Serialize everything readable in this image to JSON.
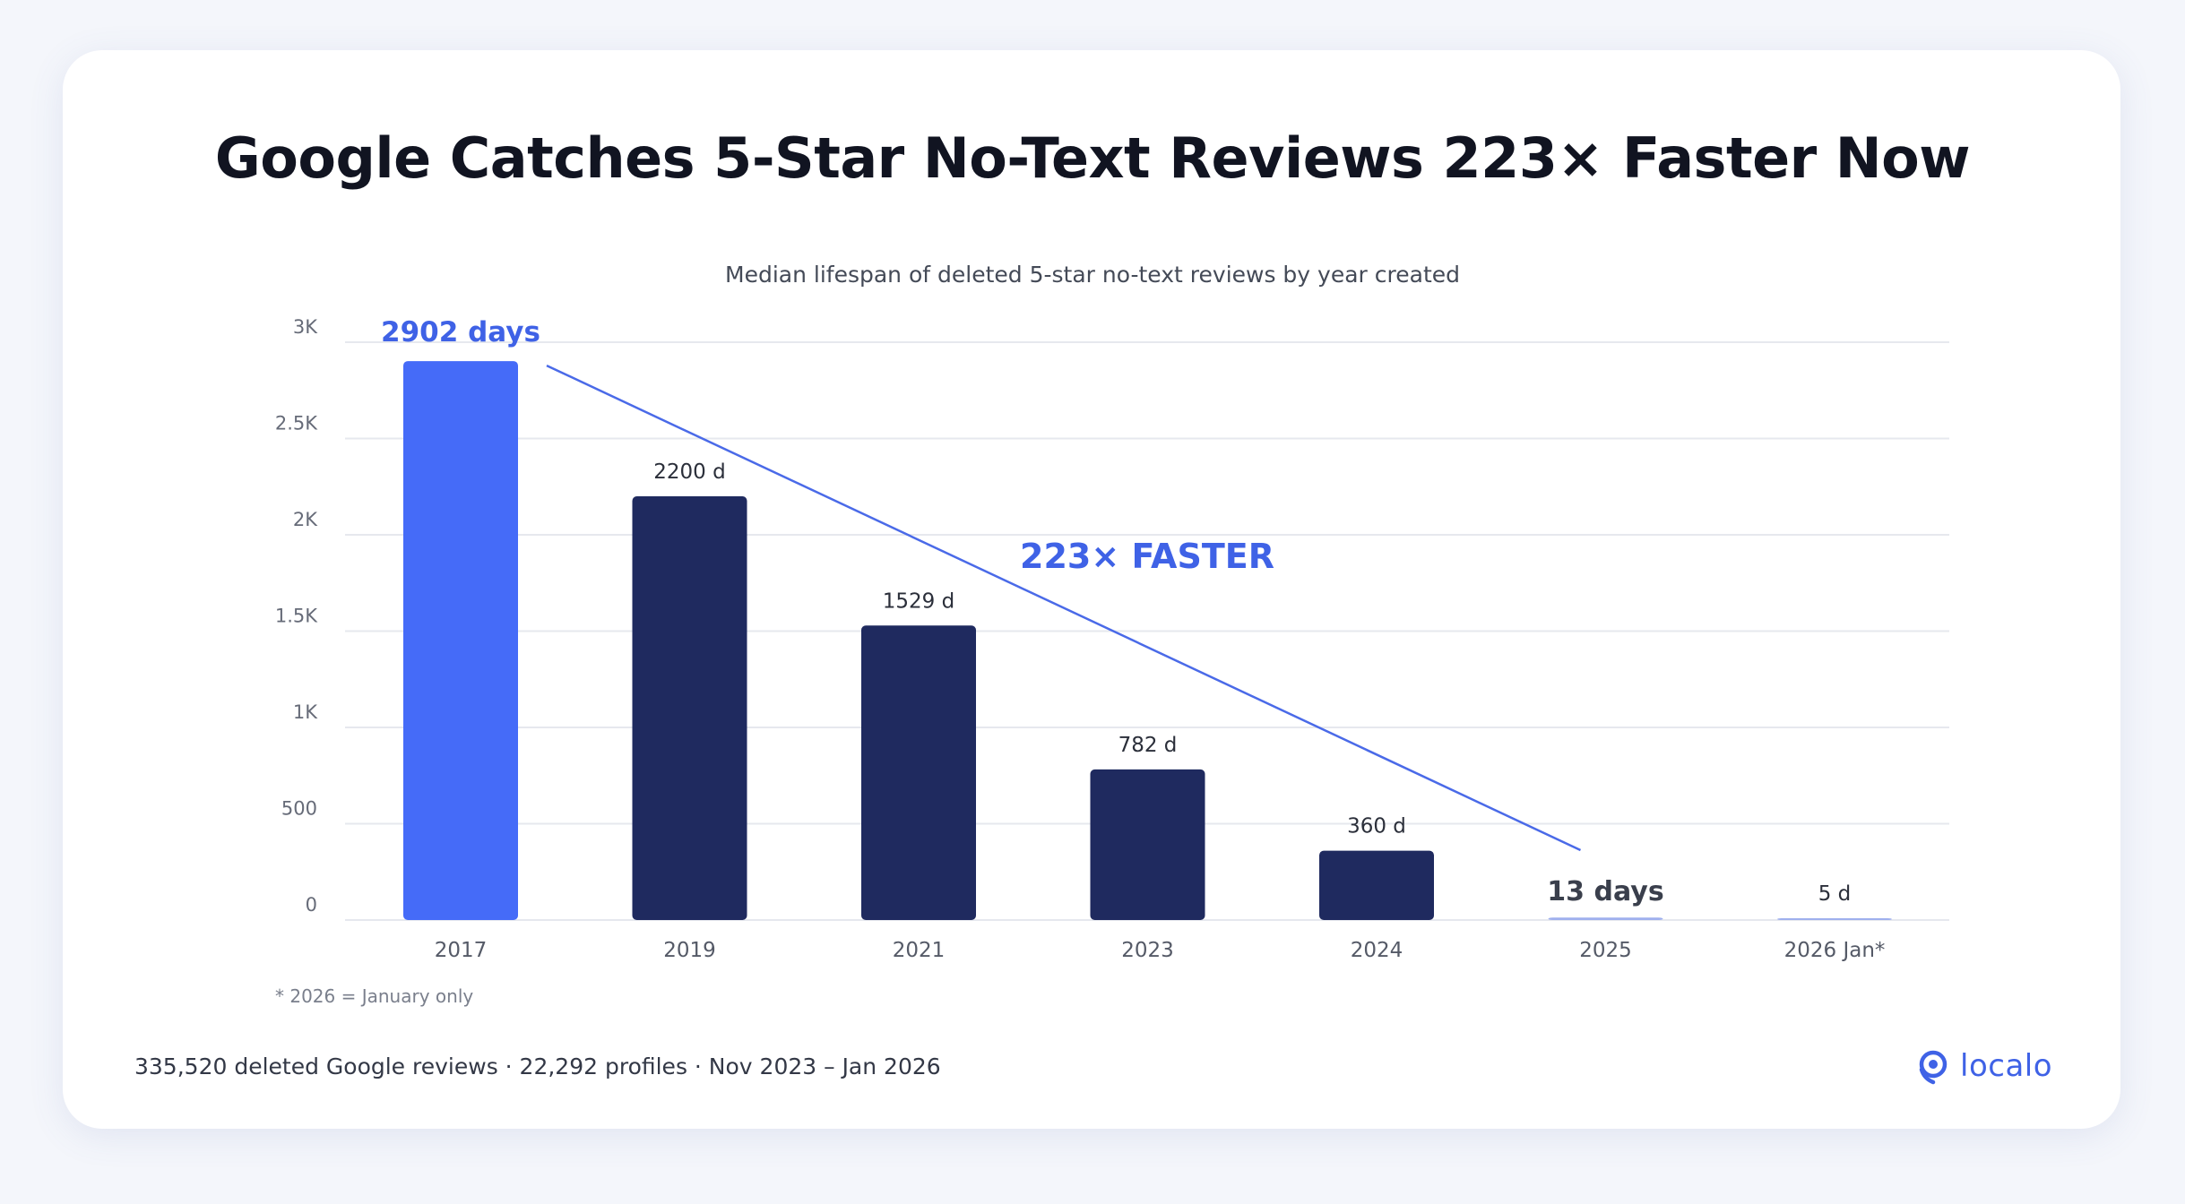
{
  "header": {
    "title": "Google Catches 5-Star No-Text Reviews 223× Faster Now",
    "subtitle": "Median lifespan of deleted 5-star no-text reviews by year created"
  },
  "chart_data": {
    "type": "bar",
    "categories": [
      "2017",
      "2019",
      "2021",
      "2023",
      "2024",
      "2025",
      "2026 Jan*"
    ],
    "values": [
      2902,
      2200,
      1529,
      782,
      360,
      13,
      5
    ],
    "data_labels": [
      "2902 days",
      "2200 d",
      "1529 d",
      "782 d",
      "360 d",
      "13 days",
      "5 d"
    ],
    "highlight_index": 0,
    "y_ticks": [
      0,
      500,
      1000,
      1500,
      2000,
      2500,
      3000
    ],
    "y_tick_labels": [
      "0",
      "500",
      "1K",
      "1.5K",
      "2K",
      "2.5K",
      "3K"
    ],
    "ylim": [
      0,
      3000
    ],
    "grid": true,
    "annotation": {
      "text": "223× FASTER",
      "from_category": "2017",
      "to_category": "2025"
    },
    "colors": {
      "highlight_bar": "#456bf8",
      "bar": "#1f2a5f",
      "accent": "#3f62e6",
      "trend_line": "#4a6ae8",
      "grid": "#e6e8ee",
      "tick_label": "#666b78"
    }
  },
  "footnote": "* 2026 = January only",
  "source": "335,520 deleted Google reviews · 22,292 profiles · Nov 2023 – Jan 2026",
  "logo": {
    "text": "localo",
    "icon": "location-pin-icon"
  }
}
